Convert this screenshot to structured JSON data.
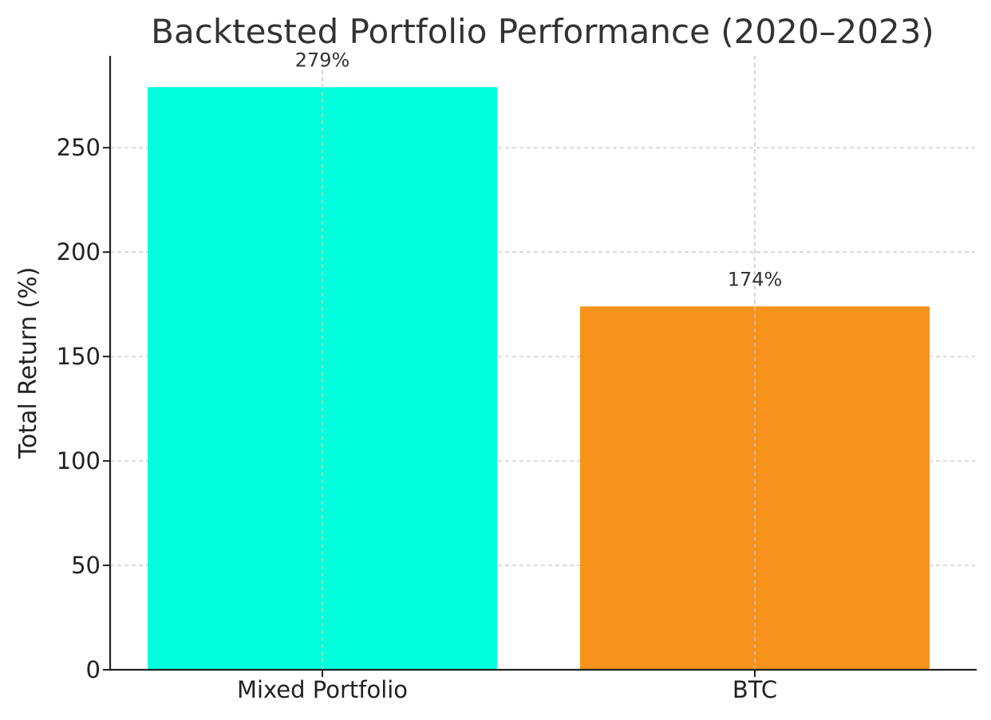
{
  "chart_data": {
    "type": "bar",
    "title": "Backtested Portfolio Performance (2020–2023)",
    "xlabel": "",
    "ylabel": "Total Return (%)",
    "categories": [
      "Mixed Portfolio",
      "BTC"
    ],
    "values": [
      279,
      174
    ],
    "value_labels": [
      "279%",
      "174%"
    ],
    "colors": [
      "#00FFDD",
      "#F7931A"
    ],
    "ylim": [
      0,
      294
    ],
    "yticks": [
      0,
      50,
      100,
      150,
      200,
      250
    ],
    "grid": true,
    "legend": "none"
  }
}
